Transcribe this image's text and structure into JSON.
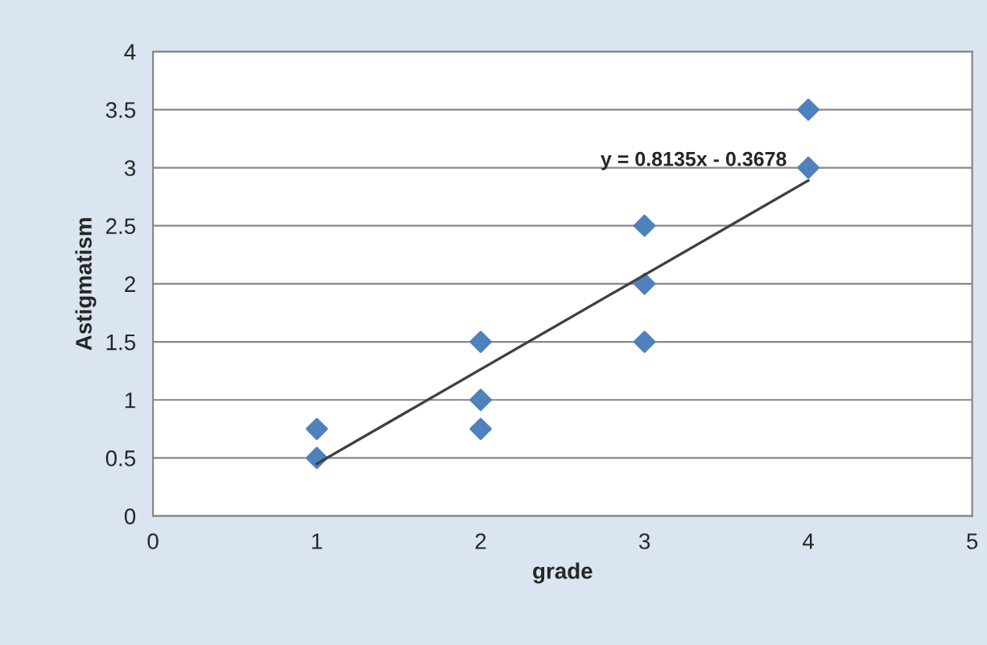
{
  "chart_data": {
    "type": "scatter",
    "xlabel": "grade",
    "ylabel": "Astigmatism",
    "xlim": [
      0,
      5
    ],
    "xticks": [
      0,
      1,
      2,
      3,
      4,
      5
    ],
    "ylim": [
      0,
      4
    ],
    "yticks": [
      0,
      0.5,
      1,
      1.5,
      2,
      2.5,
      3,
      3.5,
      4
    ],
    "grid": "y",
    "marker": "diamond",
    "series": [
      {
        "color": "#4f81bd",
        "x": [
          1,
          1,
          2,
          2,
          2,
          3,
          3,
          3,
          4,
          4
        ],
        "values": [
          0.75,
          0.5,
          1.5,
          1.0,
          0.75,
          2.5,
          2.0,
          1.5,
          3.5,
          3.0
        ]
      },
      {
        "type": "line",
        "marker": "none",
        "color": "#404040",
        "x": [
          1,
          4
        ],
        "values": [
          0.45,
          2.89
        ]
      }
    ],
    "annotations": [
      "y = 0.8135x - 0.3678"
    ]
  }
}
